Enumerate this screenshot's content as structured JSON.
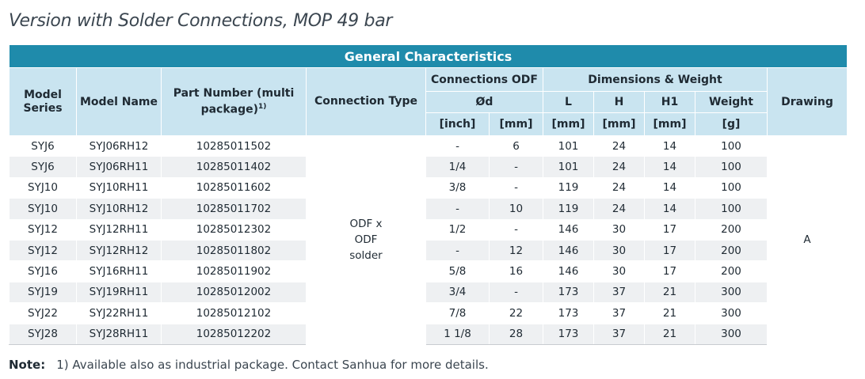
{
  "title": "Version with Solder Connections, MOP 49 bar",
  "table": {
    "caption": "General Characteristics",
    "headers": {
      "model_series": "Model Series",
      "model_name": "Model Name",
      "part_number": "Part Number (multi package)",
      "part_number_sup": "1)",
      "connection_type": "Connection Type",
      "connections_odf": "Connections ODF",
      "dimensions_weight": "Dimensions & Weight",
      "drawing": "Drawing",
      "od": "Ød",
      "l": "L",
      "h": "H",
      "h1": "H1",
      "weight": "Weight",
      "unit_inch": "[inch]",
      "unit_mm": "[mm]",
      "unit_g": "[g]"
    },
    "connection_type_value": "ODF x ODF solder",
    "drawing_value": "A",
    "rows": [
      {
        "series": "SYJ6",
        "name": "SYJ06RH12",
        "part": "10285011502",
        "inch": "-",
        "mm": "6",
        "L": "101",
        "H": "24",
        "H1": "14",
        "weight": "100"
      },
      {
        "series": "SYJ6",
        "name": "SYJ06RH11",
        "part": "10285011402",
        "inch": "1/4",
        "mm": "-",
        "L": "101",
        "H": "24",
        "H1": "14",
        "weight": "100"
      },
      {
        "series": "SYJ10",
        "name": "SYJ10RH11",
        "part": "10285011602",
        "inch": "3/8",
        "mm": "-",
        "L": "119",
        "H": "24",
        "H1": "14",
        "weight": "100"
      },
      {
        "series": "SYJ10",
        "name": "SYJ10RH12",
        "part": "10285011702",
        "inch": "-",
        "mm": "10",
        "L": "119",
        "H": "24",
        "H1": "14",
        "weight": "100"
      },
      {
        "series": "SYJ12",
        "name": "SYJ12RH11",
        "part": "10285012302",
        "inch": "1/2",
        "mm": "-",
        "L": "146",
        "H": "30",
        "H1": "17",
        "weight": "200"
      },
      {
        "series": "SYJ12",
        "name": "SYJ12RH12",
        "part": "10285011802",
        "inch": "-",
        "mm": "12",
        "L": "146",
        "H": "30",
        "H1": "17",
        "weight": "200"
      },
      {
        "series": "SYJ16",
        "name": "SYJ16RH11",
        "part": "10285011902",
        "inch": "5/8",
        "mm": "16",
        "L": "146",
        "H": "30",
        "H1": "17",
        "weight": "200"
      },
      {
        "series": "SYJ19",
        "name": "SYJ19RH11",
        "part": "10285012002",
        "inch": "3/4",
        "mm": "-",
        "L": "173",
        "H": "37",
        "H1": "21",
        "weight": "300"
      },
      {
        "series": "SYJ22",
        "name": "SYJ22RH11",
        "part": "10285012102",
        "inch": "7/8",
        "mm": "22",
        "L": "173",
        "H": "37",
        "H1": "21",
        "weight": "300"
      },
      {
        "series": "SYJ28",
        "name": "SYJ28RH11",
        "part": "10285012202",
        "inch": "1 1/8",
        "mm": "28",
        "L": "173",
        "H": "37",
        "H1": "21",
        "weight": "300"
      }
    ]
  },
  "note": {
    "label": "Note:",
    "text": "1) Available also as industrial package. Contact Sanhua for more details."
  },
  "colors": {
    "header_dark": "#1f8bab",
    "header_light": "#c9e4f0",
    "row_alt": "#eef0f2"
  }
}
